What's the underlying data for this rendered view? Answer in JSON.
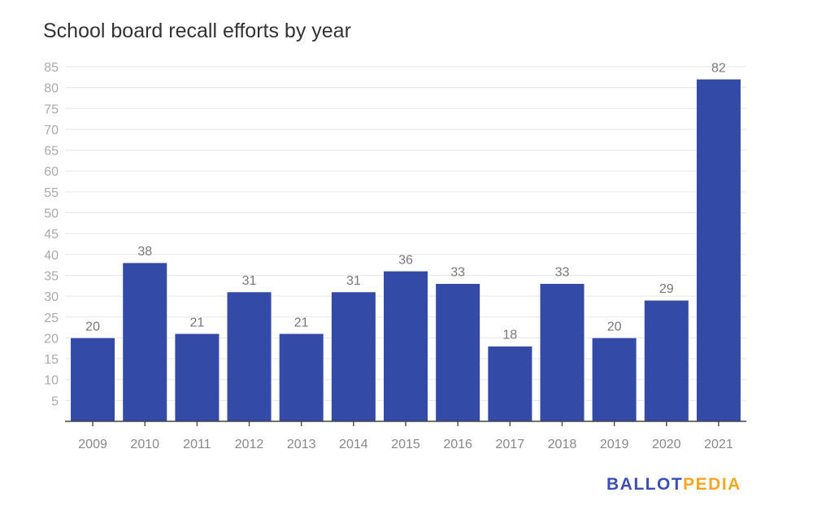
{
  "chart_data": {
    "type": "bar",
    "title": "School board recall efforts by year",
    "xlabel": "",
    "ylabel": "",
    "categories": [
      "2009",
      "2010",
      "2011",
      "2012",
      "2013",
      "2014",
      "2015",
      "2016",
      "2017",
      "2018",
      "2019",
      "2020",
      "2021"
    ],
    "values": [
      20,
      38,
      21,
      31,
      21,
      31,
      36,
      33,
      18,
      33,
      20,
      29,
      82
    ],
    "ylim": [
      0,
      85
    ],
    "yticks": [
      5,
      10,
      15,
      20,
      25,
      30,
      35,
      40,
      45,
      50,
      55,
      60,
      65,
      70,
      75,
      80,
      85
    ],
    "grid": true,
    "data_labels": true,
    "bar_color": "#344aa7"
  },
  "branding": {
    "logo_part1": "BALLOT",
    "logo_part2": "PEDIA"
  }
}
